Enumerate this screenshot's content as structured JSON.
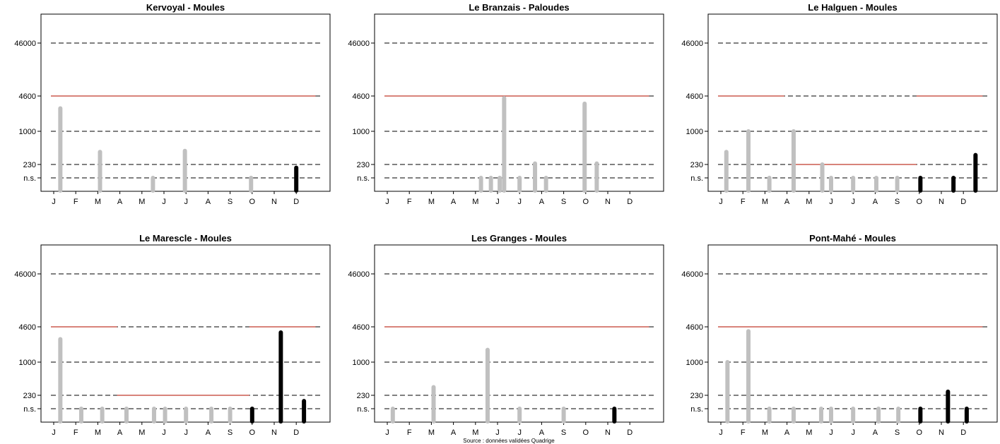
{
  "colors": {
    "past_bar": "#c0c0c0",
    "recent_bar": "#000000",
    "threshold_line": "#c0392b",
    "reference_line": "#000000",
    "frame": "#000000"
  },
  "source_note": "Source : données validées Quadrige",
  "chart_data": [
    {
      "type": "bar",
      "title": "Kervoyal - Moules",
      "yticks": [
        "n.s.",
        "230",
        "1000",
        "4600",
        "46000"
      ],
      "months": [
        "J",
        "F",
        "M",
        "A",
        "M",
        "J",
        "J",
        "A",
        "S",
        "O",
        "N",
        "D"
      ],
      "threshold": [
        {
          "from": 0,
          "to": 12,
          "level": 4600
        }
      ],
      "bars": [
        {
          "x": 0.3,
          "value": 2700,
          "recent": false
        },
        {
          "x": 2.1,
          "value": 400,
          "recent": false
        },
        {
          "x": 4.5,
          "value": 130,
          "recent": false
        },
        {
          "x": 5.95,
          "value": 420,
          "recent": false
        },
        {
          "x": 8.95,
          "value": 130,
          "recent": false
        },
        {
          "x": 11.0,
          "value": 200,
          "recent": true
        }
      ]
    },
    {
      "type": "bar",
      "title": "Le Branzais - Paloudes",
      "yticks": [
        "n.s.",
        "230",
        "1000",
        "4600",
        "46000"
      ],
      "months": [
        "J",
        "F",
        "M",
        "A",
        "M",
        "J",
        "J",
        "A",
        "S",
        "O",
        "N",
        "D"
      ],
      "threshold": [
        {
          "from": 0,
          "to": 12,
          "level": 4600
        }
      ],
      "bars": [
        {
          "x": 4.25,
          "value": 130,
          "recent": false
        },
        {
          "x": 4.7,
          "value": 130,
          "recent": false
        },
        {
          "x": 5.1,
          "value": 130,
          "recent": false
        },
        {
          "x": 5.3,
          "value": 4200,
          "recent": false
        },
        {
          "x": 6.0,
          "value": 130,
          "recent": false
        },
        {
          "x": 6.7,
          "value": 240,
          "recent": false
        },
        {
          "x": 7.2,
          "value": 130,
          "recent": false
        },
        {
          "x": 8.95,
          "value": 3300,
          "recent": false
        },
        {
          "x": 9.5,
          "value": 240,
          "recent": false
        }
      ]
    },
    {
      "type": "bar",
      "title": "Le Halguen - Moules",
      "yticks": [
        "n.s.",
        "230",
        "1000",
        "4600",
        "46000"
      ],
      "months": [
        "J",
        "F",
        "M",
        "A",
        "M",
        "J",
        "J",
        "A",
        "S",
        "O",
        "N",
        "D"
      ],
      "threshold": [
        {
          "from": 0,
          "to": 3.0,
          "level": 4600
        },
        {
          "from": 3.3,
          "to": 9.0,
          "level": 230
        },
        {
          "from": 9.0,
          "to": 12,
          "level": 4600
        }
      ],
      "bars": [
        {
          "x": 0.25,
          "value": 400,
          "recent": false
        },
        {
          "x": 1.25,
          "value": 1000,
          "recent": false
        },
        {
          "x": 2.2,
          "value": 130,
          "recent": false
        },
        {
          "x": 3.3,
          "value": 1000,
          "recent": false
        },
        {
          "x": 4.6,
          "value": 230,
          "recent": false
        },
        {
          "x": 5.0,
          "value": 130,
          "recent": false
        },
        {
          "x": 6.0,
          "value": 130,
          "recent": false
        },
        {
          "x": 7.05,
          "value": 130,
          "recent": false
        },
        {
          "x": 8.0,
          "value": 130,
          "recent": false
        },
        {
          "x": 9.05,
          "value": 130,
          "recent": true
        },
        {
          "x": 10.55,
          "value": 130,
          "recent": true
        },
        {
          "x": 11.55,
          "value": 350,
          "recent": true
        }
      ]
    },
    {
      "type": "bar",
      "title": "Le Marescle - Moules",
      "yticks": [
        "n.s.",
        "230",
        "1000",
        "4600",
        "46000"
      ],
      "months": [
        "J",
        "F",
        "M",
        "A",
        "M",
        "J",
        "J",
        "A",
        "S",
        "O",
        "N",
        "D"
      ],
      "threshold": [
        {
          "from": 0,
          "to": 3.0,
          "level": 4600
        },
        {
          "from": 3.0,
          "to": 9.0,
          "level": 230
        },
        {
          "from": 9.0,
          "to": 12,
          "level": 4600
        }
      ],
      "bars": [
        {
          "x": 0.3,
          "value": 2700,
          "recent": false
        },
        {
          "x": 1.25,
          "value": 130,
          "recent": false
        },
        {
          "x": 2.2,
          "value": 130,
          "recent": false
        },
        {
          "x": 3.3,
          "value": 130,
          "recent": false
        },
        {
          "x": 4.55,
          "value": 130,
          "recent": false
        },
        {
          "x": 5.05,
          "value": 130,
          "recent": false
        },
        {
          "x": 6.0,
          "value": 130,
          "recent": false
        },
        {
          "x": 7.15,
          "value": 130,
          "recent": false
        },
        {
          "x": 8.0,
          "value": 130,
          "recent": false
        },
        {
          "x": 9.0,
          "value": 130,
          "recent": true
        },
        {
          "x": 10.3,
          "value": 3600,
          "recent": true
        },
        {
          "x": 11.35,
          "value": 180,
          "recent": true
        }
      ]
    },
    {
      "type": "bar",
      "title": "Les Granges - Moules",
      "yticks": [
        "n.s.",
        "230",
        "1000",
        "4600",
        "46000"
      ],
      "months": [
        "J",
        "F",
        "M",
        "A",
        "M",
        "J",
        "J",
        "A",
        "S",
        "O",
        "N",
        "D"
      ],
      "threshold": [
        {
          "from": 0,
          "to": 12,
          "level": 4600
        }
      ],
      "bars": [
        {
          "x": 0.25,
          "value": 130,
          "recent": false
        },
        {
          "x": 2.1,
          "value": 330,
          "recent": false
        },
        {
          "x": 4.55,
          "value": 1700,
          "recent": false
        },
        {
          "x": 6.0,
          "value": 130,
          "recent": false
        },
        {
          "x": 8.0,
          "value": 130,
          "recent": false
        },
        {
          "x": 10.3,
          "value": 130,
          "recent": true
        }
      ]
    },
    {
      "type": "bar",
      "title": "Pont-Mahé - Moules",
      "yticks": [
        "n.s.",
        "230",
        "1000",
        "4600",
        "46000"
      ],
      "months": [
        "J",
        "F",
        "M",
        "A",
        "M",
        "J",
        "J",
        "A",
        "S",
        "O",
        "N",
        "D"
      ],
      "threshold": [
        {
          "from": 0,
          "to": 12,
          "level": 4600
        }
      ],
      "bars": [
        {
          "x": 0.3,
          "value": 1000,
          "recent": false
        },
        {
          "x": 1.25,
          "value": 3800,
          "recent": false
        },
        {
          "x": 2.2,
          "value": 130,
          "recent": false
        },
        {
          "x": 3.3,
          "value": 130,
          "recent": false
        },
        {
          "x": 4.55,
          "value": 130,
          "recent": false
        },
        {
          "x": 5.0,
          "value": 130,
          "recent": false
        },
        {
          "x": 6.0,
          "value": 130,
          "recent": false
        },
        {
          "x": 7.15,
          "value": 130,
          "recent": false
        },
        {
          "x": 8.05,
          "value": 130,
          "recent": false
        },
        {
          "x": 9.05,
          "value": 130,
          "recent": true
        },
        {
          "x": 10.3,
          "value": 270,
          "recent": true
        },
        {
          "x": 11.15,
          "value": 130,
          "recent": true
        }
      ]
    }
  ]
}
